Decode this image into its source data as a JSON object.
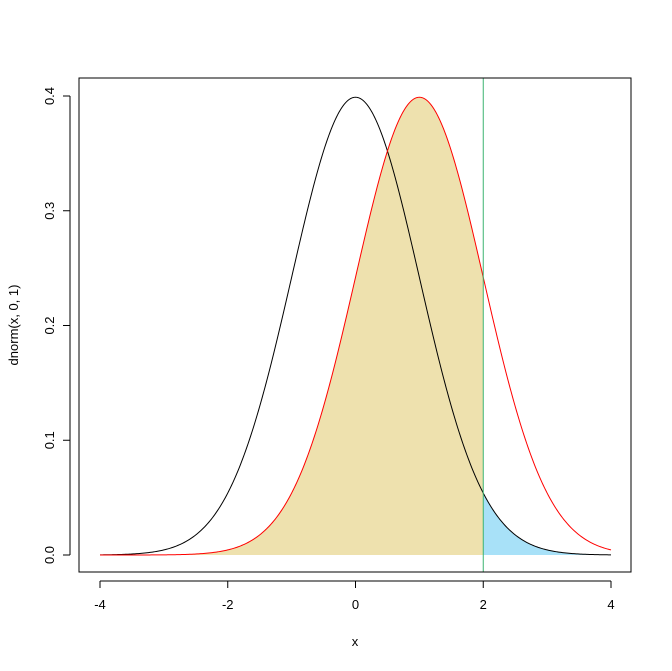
{
  "chart_data": {
    "type": "line",
    "title": "",
    "xlabel": "x",
    "ylabel": "dnorm(x, 0, 1)",
    "xlim": [
      -4,
      4
    ],
    "ylim": [
      0,
      0.4
    ],
    "x_ticks": [
      -4,
      -2,
      0,
      2,
      4
    ],
    "y_ticks": [
      0.0,
      0.1,
      0.2,
      0.3,
      0.4
    ],
    "x_tick_labels": [
      "-4",
      "-2",
      "0",
      "2",
      "4"
    ],
    "y_tick_labels": [
      "0.0",
      "0.1",
      "0.2",
      "0.3",
      "0.4"
    ],
    "grid": false,
    "series": [
      {
        "distribution": "normal",
        "mean": 0,
        "sd": 1,
        "color": "#000000"
      },
      {
        "distribution": "normal",
        "mean": 1,
        "sd": 1,
        "color": "#ff0000"
      }
    ],
    "shaded_regions": [
      {
        "curve_mean": 1,
        "curve_sd": 1,
        "from": -4,
        "to": 2,
        "color": "#eee1ae"
      },
      {
        "curve_mean": 0,
        "curve_sd": 1,
        "from": 2,
        "to": 4,
        "color": "#a8e1f8"
      }
    ],
    "vertical_lines": [
      {
        "x": 2,
        "color": "#3cb371"
      }
    ]
  }
}
